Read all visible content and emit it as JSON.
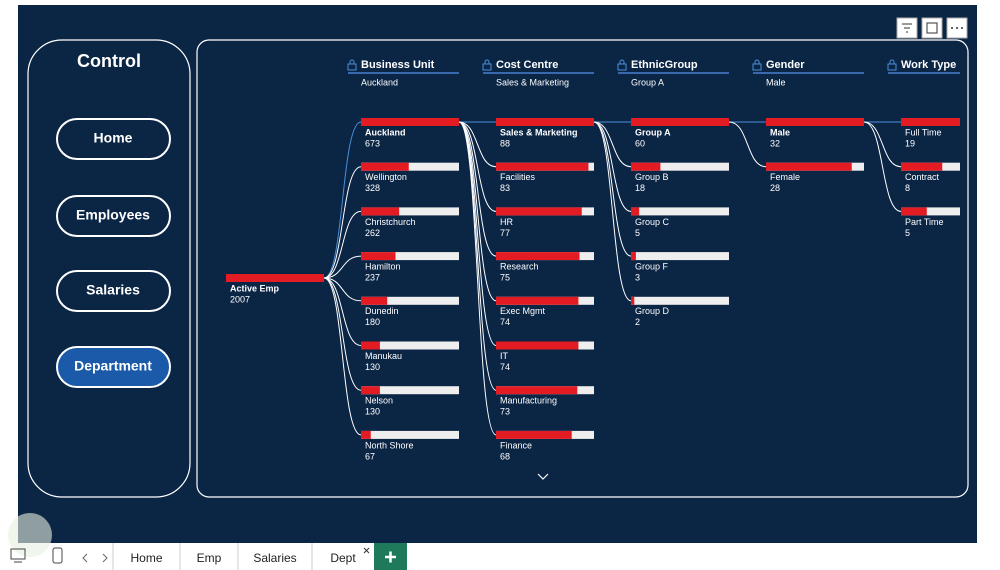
{
  "sidebar": {
    "title": "Control",
    "buttons": [
      "Home",
      "Employees",
      "Salaries",
      "Department"
    ]
  },
  "tree": {
    "root": {
      "label": "Active Emp",
      "value": 2007
    },
    "levels": [
      {
        "field": "Business Unit",
        "selected": "Auckland",
        "nodes": [
          {
            "label": "Auckland",
            "value": 673
          },
          {
            "label": "Wellington",
            "value": 328
          },
          {
            "label": "Christchurch",
            "value": 262
          },
          {
            "label": "Hamilton",
            "value": 237
          },
          {
            "label": "Dunedin",
            "value": 180
          },
          {
            "label": "Manukau",
            "value": 130
          },
          {
            "label": "Nelson",
            "value": 130
          },
          {
            "label": "North Shore",
            "value": 67
          }
        ]
      },
      {
        "field": "Cost Centre",
        "selected": "Sales & Marketing",
        "nodes": [
          {
            "label": "Sales & Marketing",
            "value": 88
          },
          {
            "label": "Facilities",
            "value": 83
          },
          {
            "label": "HR",
            "value": 77
          },
          {
            "label": "Research",
            "value": 75
          },
          {
            "label": "Exec Mgmt",
            "value": 74
          },
          {
            "label": "IT",
            "value": 74
          },
          {
            "label": "Manufacturing",
            "value": 73
          },
          {
            "label": "Finance",
            "value": 68
          }
        ]
      },
      {
        "field": "EthnicGroup",
        "selected": "Group A",
        "nodes": [
          {
            "label": "Group A",
            "value": 60
          },
          {
            "label": "Group B",
            "value": 18
          },
          {
            "label": "Group C",
            "value": 5
          },
          {
            "label": "Group F",
            "value": 3
          },
          {
            "label": "Group D",
            "value": 2
          }
        ]
      },
      {
        "field": "Gender",
        "selected": "Male",
        "nodes": [
          {
            "label": "Male",
            "value": 32
          },
          {
            "label": "Female",
            "value": 28
          }
        ]
      },
      {
        "field": "Work Type",
        "selected": null,
        "nodes": [
          {
            "label": "Full Time",
            "value": 19
          },
          {
            "label": "Contract",
            "value": 8
          },
          {
            "label": "Part Time",
            "value": 5
          }
        ]
      }
    ]
  },
  "tabs": [
    "Home",
    "Emp",
    "Salaries",
    "Dept"
  ]
}
